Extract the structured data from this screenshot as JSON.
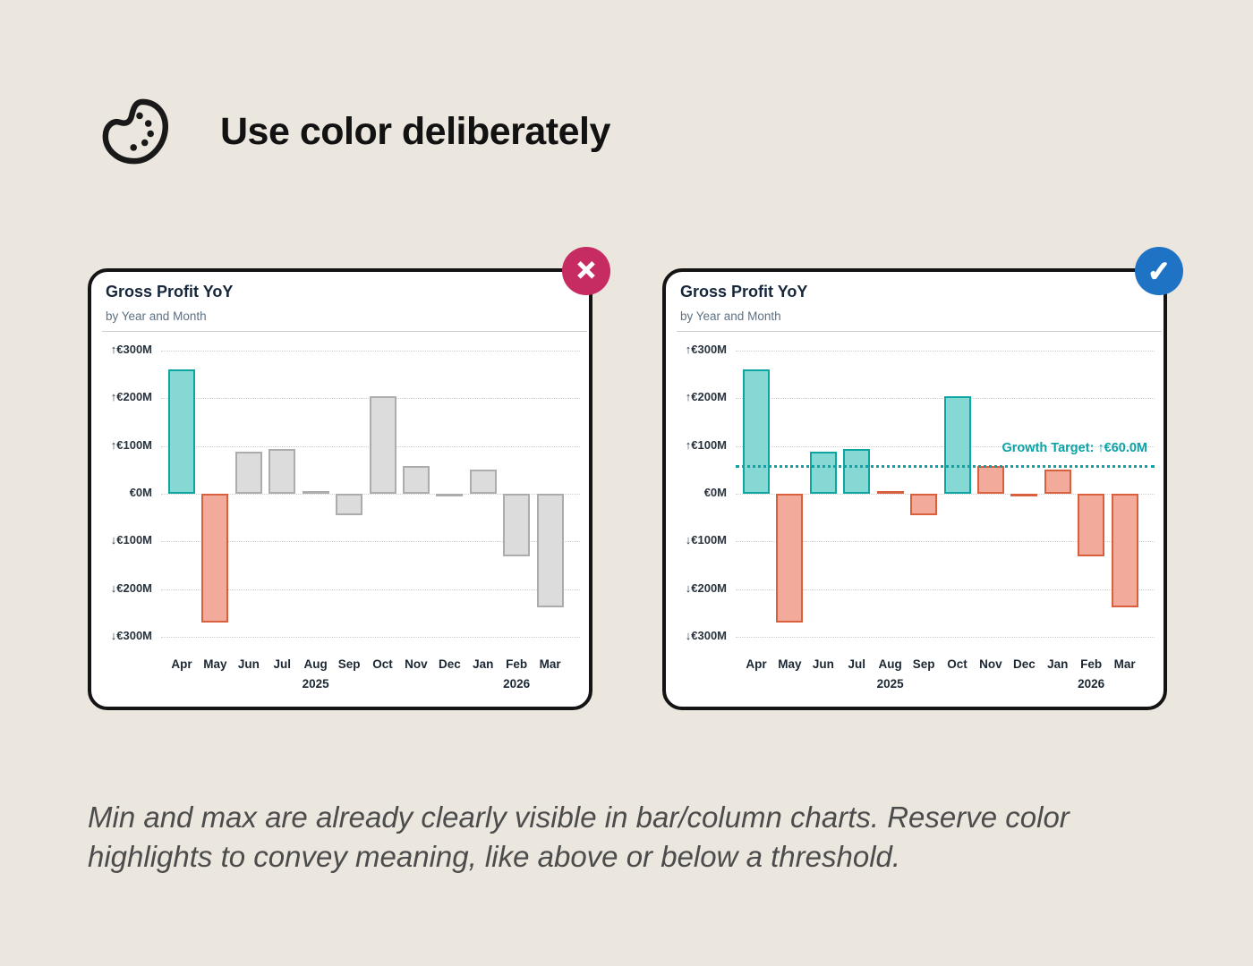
{
  "header": {
    "title": "Use color deliberately",
    "icon": "palette-icon"
  },
  "caption": "Min and max are already clearly visible in bar/column charts. Reserve color highlights to convey meaning, like above or below a threshold.",
  "verdict_badges": {
    "bad": {
      "symbol": "✕",
      "color": "#C62B62",
      "meaning": "don't"
    },
    "good": {
      "symbol": "✓",
      "color": "#1F73C4",
      "meaning": "do"
    }
  },
  "colors": {
    "page_background": "#EBE6DE",
    "card_background": "#FFFFFF",
    "card_border": "#141414"
  },
  "palette": {
    "teal_fill": "#86D8D4",
    "teal_stroke": "#0CA5A1",
    "salmon_fill": "#F2AB9A",
    "salmon_stroke": "#D8603F",
    "gray_fill": "#DCDCDC",
    "gray_stroke": "#ACACAC",
    "threshold": "#0BA3A6"
  },
  "chart_data": [
    {
      "id": "bad",
      "type": "bar",
      "verdict": "bad",
      "title": "Gross Profit YoY",
      "subtitle": "by Year and Month",
      "unit": "€M",
      "categories": [
        "Apr",
        "May",
        "Jun",
        "Jul",
        "Aug",
        "Sep",
        "Oct",
        "Nov",
        "Dec",
        "Jan",
        "Feb",
        "Mar"
      ],
      "year_labels": [
        {
          "index": 4,
          "text": "2025"
        },
        {
          "index": 10,
          "text": "2026"
        }
      ],
      "values": [
        260,
        -270,
        88,
        94,
        2,
        -45,
        204,
        58,
        -1,
        50,
        -132,
        -238
      ],
      "styles": [
        "teal",
        "salmon",
        "gray",
        "gray",
        "gray",
        "gray",
        "gray",
        "gray",
        "gray",
        "gray",
        "gray",
        "gray"
      ],
      "ylim": [
        -300,
        300
      ],
      "yticks": [
        {
          "value": 300,
          "label": "↑€300M"
        },
        {
          "value": 200,
          "label": "↑€200M"
        },
        {
          "value": 100,
          "label": "↑€100M"
        },
        {
          "value": 0,
          "label": "€0M"
        },
        {
          "value": -100,
          "label": "↓€100M"
        },
        {
          "value": -200,
          "label": "↓€200M"
        },
        {
          "value": -300,
          "label": "↓€300M"
        }
      ],
      "grid": "dotted",
      "legend": "none"
    },
    {
      "id": "good",
      "type": "bar",
      "verdict": "good",
      "title": "Gross Profit YoY",
      "subtitle": "by Year and Month",
      "unit": "€M",
      "categories": [
        "Apr",
        "May",
        "Jun",
        "Jul",
        "Aug",
        "Sep",
        "Oct",
        "Nov",
        "Dec",
        "Jan",
        "Feb",
        "Mar"
      ],
      "year_labels": [
        {
          "index": 4,
          "text": "2025"
        },
        {
          "index": 10,
          "text": "2026"
        }
      ],
      "values": [
        260,
        -270,
        88,
        94,
        2,
        -45,
        204,
        58,
        -1,
        50,
        -132,
        -238
      ],
      "styles": [
        "teal",
        "salmon",
        "teal",
        "teal",
        "salmon",
        "salmon",
        "teal",
        "salmon",
        "salmon",
        "salmon",
        "salmon",
        "salmon"
      ],
      "ylim": [
        -300,
        300
      ],
      "yticks": [
        {
          "value": 300,
          "label": "↑€300M"
        },
        {
          "value": 200,
          "label": "↑€200M"
        },
        {
          "value": 100,
          "label": "↑€100M"
        },
        {
          "value": 0,
          "label": "€0M"
        },
        {
          "value": -100,
          "label": "↓€100M"
        },
        {
          "value": -200,
          "label": "↓€200M"
        },
        {
          "value": -300,
          "label": "↓€300M"
        }
      ],
      "threshold": {
        "value": 60,
        "label": "Growth Target: ↑€60.0M"
      },
      "grid": "dotted",
      "legend": "none"
    }
  ]
}
